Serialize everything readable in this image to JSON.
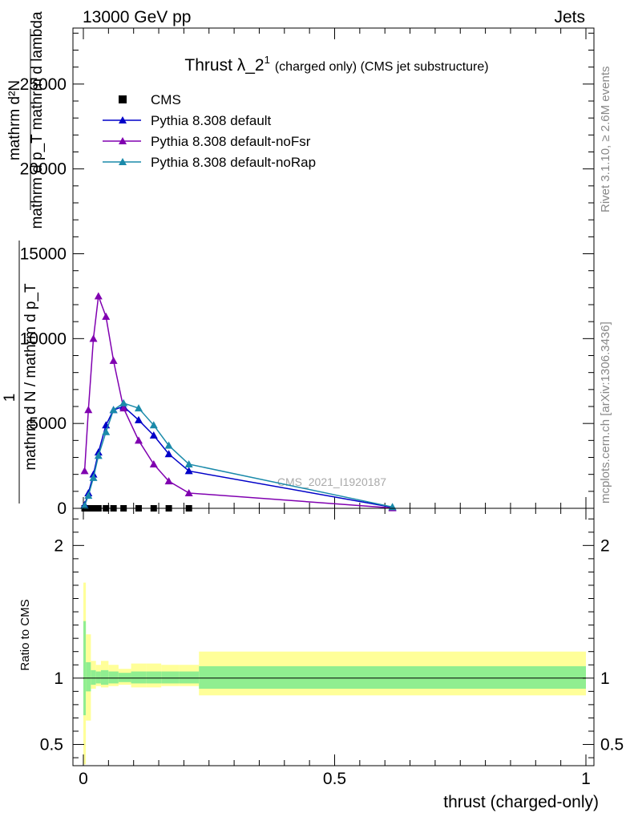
{
  "header": {
    "left": "13000 GeV pp",
    "right": "Jets"
  },
  "side_texts": {
    "rivet": "Rivet 3.1.10, ≥ 2.6M events",
    "mcplots": "mcplots.cern.ch [arXiv:1306.3436]"
  },
  "watermark": "CMS_2021_I1920187",
  "chart_data": [
    {
      "type": "line",
      "title": "Thrust λ_2",
      "title_superscript": "1",
      "title_suffix": "(charged only) (CMS jet substructure)",
      "ylabel_numerator": "mathrm d²N",
      "ylabel_denominator": "mathrm d p_T mathrm d lambda",
      "ylabel_prefactor_num": "1",
      "ylabel_prefactor_den": "mathrm d N / mathrm d p_T",
      "yticks": [
        0,
        5000,
        10000,
        15000,
        20000,
        25000
      ],
      "ytick_labels": [
        "0",
        "5000",
        "10000",
        "15000",
        "20000",
        "25000"
      ],
      "xlim": [
        -0.02,
        1.0
      ],
      "ylim": [
        0,
        28300
      ],
      "legend_position": "top-left",
      "series": [
        {
          "name": "CMS",
          "color": "#000000",
          "marker": "square",
          "x": [
            0.0025,
            0.01,
            0.02,
            0.03,
            0.045,
            0.06,
            0.08,
            0.11,
            0.14,
            0.17,
            0.21
          ],
          "y": [
            0,
            0,
            0,
            0,
            0,
            0,
            0,
            0,
            0,
            0,
            0
          ]
        },
        {
          "name": "Pythia 8.308 default",
          "color": "#0000c8",
          "marker": "triangle",
          "x": [
            0.0025,
            0.01,
            0.02,
            0.03,
            0.045,
            0.06,
            0.08,
            0.11,
            0.14,
            0.17,
            0.21,
            0.615
          ],
          "y": [
            200,
            900,
            2000,
            3300,
            4900,
            5800,
            6000,
            5200,
            4300,
            3200,
            2200,
            60
          ]
        },
        {
          "name": "Pythia 8.308 default-noFsr",
          "color": "#8000b0",
          "marker": "triangle",
          "x": [
            0.0025,
            0.01,
            0.02,
            0.03,
            0.045,
            0.06,
            0.08,
            0.11,
            0.14,
            0.17,
            0.21,
            0.615
          ],
          "y": [
            2200,
            5800,
            10000,
            12500,
            11300,
            8700,
            5900,
            4000,
            2600,
            1600,
            900,
            20
          ]
        },
        {
          "name": "Pythia 8.308 default-noRap",
          "color": "#1a8aaa",
          "marker": "triangle",
          "x": [
            0.0025,
            0.01,
            0.02,
            0.03,
            0.045,
            0.06,
            0.08,
            0.11,
            0.14,
            0.17,
            0.21,
            0.615
          ],
          "y": [
            150,
            750,
            1800,
            3100,
            4500,
            5800,
            6200,
            5900,
            4900,
            3700,
            2600,
            80
          ]
        }
      ]
    },
    {
      "type": "area",
      "ylabel": "Ratio to CMS",
      "xlabel": "thrust (charged-only)",
      "xticks": [
        0,
        0.5,
        1
      ],
      "xtick_labels": [
        "0",
        "0.5",
        "1"
      ],
      "yticks": [
        0.5,
        1,
        2
      ],
      "ytick_labels": [
        "0.5",
        "1",
        "2"
      ],
      "xlim": [
        -0.02,
        1.0
      ],
      "ylim": [
        0.34,
        2.28
      ],
      "bands": {
        "bins": [
          0,
          0.005,
          0.015,
          0.025,
          0.035,
          0.05,
          0.07,
          0.095,
          0.125,
          0.155,
          0.19,
          0.23,
          1.0
        ],
        "inner_color": "#90ee90",
        "outer_color": "#ffff99",
        "inner_lo": [
          0.72,
          0.9,
          0.95,
          0.96,
          0.95,
          0.96,
          0.97,
          0.96,
          0.96,
          0.96,
          0.96,
          0.92
        ],
        "inner_hi": [
          1.43,
          1.12,
          1.06,
          1.05,
          1.06,
          1.05,
          1.04,
          1.05,
          1.05,
          1.05,
          1.05,
          1.09
        ],
        "outer_lo": [
          0.35,
          0.68,
          0.92,
          0.94,
          0.93,
          0.94,
          0.95,
          0.93,
          0.93,
          0.94,
          0.94,
          0.87
        ],
        "outer_hi": [
          1.72,
          1.33,
          1.13,
          1.1,
          1.13,
          1.1,
          1.07,
          1.11,
          1.11,
          1.1,
          1.1,
          1.2
        ]
      },
      "reference_line": 1
    }
  ]
}
